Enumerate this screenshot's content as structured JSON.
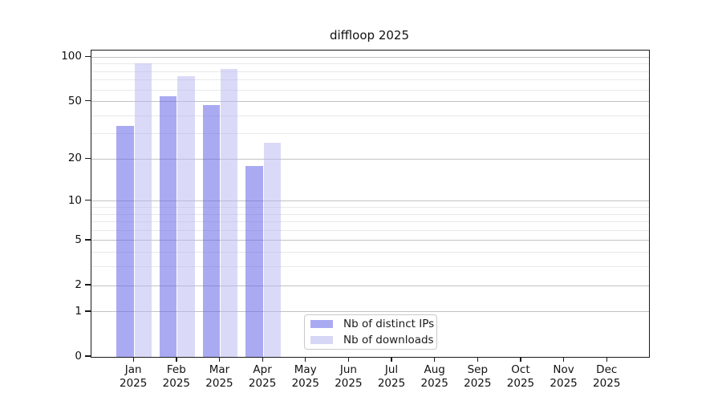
{
  "title": "diffloop 2025",
  "chart_data": {
    "type": "bar",
    "title": "diffloop 2025",
    "x_categories": [
      {
        "month": "Jan",
        "year": "2025"
      },
      {
        "month": "Feb",
        "year": "2025"
      },
      {
        "month": "Mar",
        "year": "2025"
      },
      {
        "month": "Apr",
        "year": "2025"
      },
      {
        "month": "May",
        "year": "2025"
      },
      {
        "month": "Jun",
        "year": "2025"
      },
      {
        "month": "Jul",
        "year": "2025"
      },
      {
        "month": "Aug",
        "year": "2025"
      },
      {
        "month": "Sep",
        "year": "2025"
      },
      {
        "month": "Oct",
        "year": "2025"
      },
      {
        "month": "Nov",
        "year": "2025"
      },
      {
        "month": "Dec",
        "year": "2025"
      }
    ],
    "series": [
      {
        "name": "Nb of distinct IPs",
        "key": "distinct-ips",
        "bar_color": "rgba(100,100,232,0.55)",
        "legend_color": "#aaaaf2",
        "values": [
          34,
          54,
          47,
          18,
          0,
          0,
          0,
          0,
          0,
          0,
          0,
          0
        ]
      },
      {
        "name": "Nb of downloads",
        "key": "downloads",
        "bar_color": "rgba(182,182,242,0.5)",
        "legend_color": "#d6d6f6",
        "values": [
          91,
          74,
          83,
          26,
          0,
          0,
          0,
          0,
          0,
          0,
          0,
          0
        ]
      }
    ],
    "y_axis": {
      "scale": "log10(1+x)",
      "major_ticks": [
        {
          "label": "100",
          "value": 100
        },
        {
          "label": "50",
          "value": 50
        },
        {
          "label": "20",
          "value": 20
        },
        {
          "label": "10",
          "value": 10
        },
        {
          "label": "5",
          "value": 5
        },
        {
          "label": "2",
          "value": 2
        },
        {
          "label": "1",
          "value": 1
        },
        {
          "label": "0",
          "value": 0
        }
      ],
      "minor_ticks": [
        90,
        80,
        70,
        60,
        40,
        30,
        9,
        8,
        7,
        6,
        4,
        3
      ],
      "top_value": 111
    },
    "grid": {
      "major_color": "#c2c2c2",
      "minor_color": "#e8e8e8"
    },
    "legend": {
      "position": "lower-center"
    }
  }
}
